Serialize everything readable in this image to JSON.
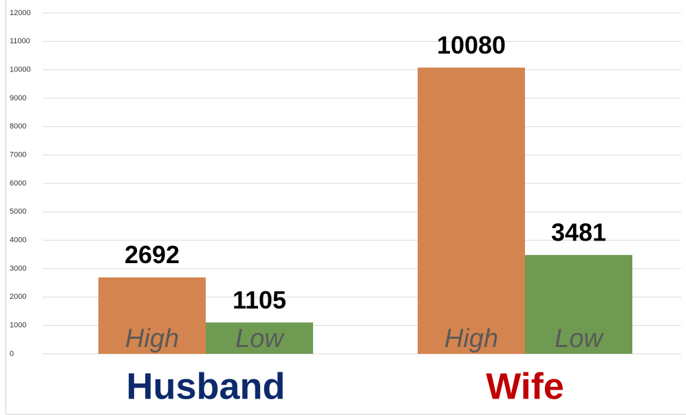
{
  "chart_data": {
    "type": "bar",
    "categories": [
      "Husband",
      "Wife"
    ],
    "category_colors": [
      "#0d2a6b",
      "#c00000"
    ],
    "series": [
      {
        "name": "High",
        "color": "#d4844e",
        "values": [
          2692,
          10080
        ]
      },
      {
        "name": "Low",
        "color": "#6f9a52",
        "values": [
          1105,
          3481
        ]
      }
    ],
    "ylim": [
      0,
      12000
    ],
    "yticks": [
      0,
      1000,
      2000,
      3000,
      4000,
      5000,
      6000,
      7000,
      8000,
      9000,
      10000,
      11000,
      12000
    ],
    "grid": true
  }
}
